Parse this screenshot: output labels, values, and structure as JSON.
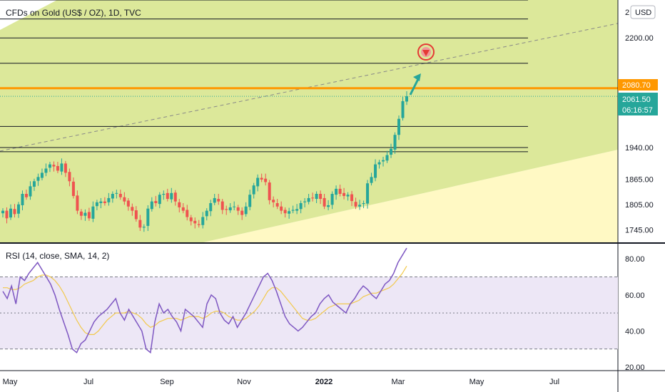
{
  "title": "CFDs on Gold (US$ / OZ), 1D, TVC",
  "currency_button": "USD",
  "price_axis_top_partial": "2",
  "indicator_title": "RSI (14, close, SMA, 14, 2)",
  "price_axis": {
    "min": 1715,
    "max": 2290,
    "ticks": [
      "2200.00",
      "2080.70",
      "1940.00",
      "1865.00",
      "1805.00",
      "1745.00"
    ],
    "tick_values": [
      2200,
      1940,
      1865,
      1805,
      1745
    ]
  },
  "rsi_axis": {
    "min": 18,
    "max": 88,
    "ticks": [
      "80.00",
      "60.00",
      "40.00",
      "20.00"
    ],
    "tick_values": [
      80,
      60,
      40,
      20
    ],
    "band_upper": 70,
    "band_lower": 30,
    "mid": 50
  },
  "time_axis": {
    "labels": [
      "May",
      "Jul",
      "Sep",
      "Nov",
      "2022",
      "Mar",
      "May",
      "Jul"
    ],
    "bold_label": "2022"
  },
  "last_price": {
    "value": "2061.50",
    "countdown": "06:16:57",
    "color": "#26a69a"
  },
  "horizontal_line": {
    "value": "2080.70",
    "color": "#ff9800"
  },
  "colors": {
    "up": "#26a69a",
    "down": "#ef5350",
    "channel_fill": "#dce89a",
    "zone_fill": "#fff9c4",
    "rsi_line": "#7e57c2",
    "rsi_ma": "#f2c94c",
    "rsi_band": "#ede7f6",
    "trend_arrow": "#26a69a",
    "target_icon": "#e53935"
  },
  "icons": {
    "target": "target-down-arrow-icon",
    "arrow": "up-arrow-icon"
  },
  "chart_data": {
    "type": "candlestick",
    "title": "CFDs on Gold (US$ / OZ), 1D, TVC",
    "close_series": [
      1790,
      1772,
      1795,
      1782,
      1805,
      1830,
      1822,
      1848,
      1860,
      1870,
      1880,
      1890,
      1900,
      1895,
      1885,
      1902,
      1880,
      1860,
      1825,
      1790,
      1778,
      1785,
      1772,
      1800,
      1810,
      1812,
      1808,
      1820,
      1830,
      1832,
      1822,
      1812,
      1800,
      1790,
      1770,
      1750,
      1752,
      1795,
      1812,
      1808,
      1828,
      1830,
      1818,
      1832,
      1812,
      1798,
      1790,
      1775,
      1765,
      1760,
      1756,
      1775,
      1790,
      1808,
      1820,
      1812,
      1792,
      1792,
      1798,
      1800,
      1790,
      1780,
      1800,
      1828,
      1850,
      1868,
      1864,
      1858,
      1815,
      1810,
      1800,
      1790,
      1784,
      1789,
      1792,
      1794,
      1808,
      1812,
      1820,
      1820,
      1830,
      1818,
      1800,
      1803,
      1830,
      1842,
      1830,
      1825,
      1828,
      1813,
      1800,
      1804,
      1808,
      1855,
      1870,
      1900,
      1905,
      1910,
      1922,
      1937,
      1970,
      2008,
      2050,
      2061.5
    ],
    "levels": [
      2290,
      2245,
      2200,
      2140,
      2080.7,
      1990,
      1940,
      1930
    ],
    "rsi": [
      62,
      58,
      65,
      55,
      70,
      68,
      72,
      75,
      78,
      74,
      70,
      66,
      60,
      52,
      45,
      38,
      30,
      28,
      33,
      35,
      40,
      45,
      48,
      50,
      52,
      55,
      58,
      50,
      46,
      52,
      48,
      44,
      40,
      30,
      28,
      45,
      55,
      50,
      52,
      48,
      45,
      40,
      52,
      50,
      48,
      45,
      42,
      55,
      60,
      58,
      50,
      46,
      44,
      48,
      42,
      46,
      50,
      55,
      60,
      65,
      70,
      72,
      68,
      62,
      55,
      48,
      44,
      42,
      40,
      42,
      45,
      48,
      50,
      55,
      58,
      60,
      56,
      54,
      52,
      50,
      55,
      58,
      62,
      65,
      63,
      60,
      58,
      62,
      66,
      68,
      72,
      78,
      82,
      86
    ],
    "rsi_ma": [
      64,
      64,
      63,
      63,
      64,
      66,
      67,
      68,
      70,
      71,
      71,
      70,
      68,
      65,
      61,
      56,
      51,
      46,
      42,
      39,
      38,
      38,
      40,
      43,
      46,
      48,
      50,
      50,
      50,
      51,
      50,
      49,
      47,
      44,
      42,
      43,
      45,
      46,
      47,
      47,
      47,
      46,
      47,
      48,
      48,
      48,
      47,
      48,
      50,
      51,
      51,
      50,
      48,
      47,
      46,
      46,
      47,
      49,
      51,
      54,
      58,
      62,
      64,
      64,
      62,
      59,
      56,
      53,
      50,
      47,
      46,
      46,
      47,
      49,
      51,
      53,
      54,
      55,
      55,
      55,
      55,
      56,
      57,
      59,
      60,
      61,
      61,
      62,
      63,
      64,
      66,
      69,
      72,
      76
    ]
  }
}
